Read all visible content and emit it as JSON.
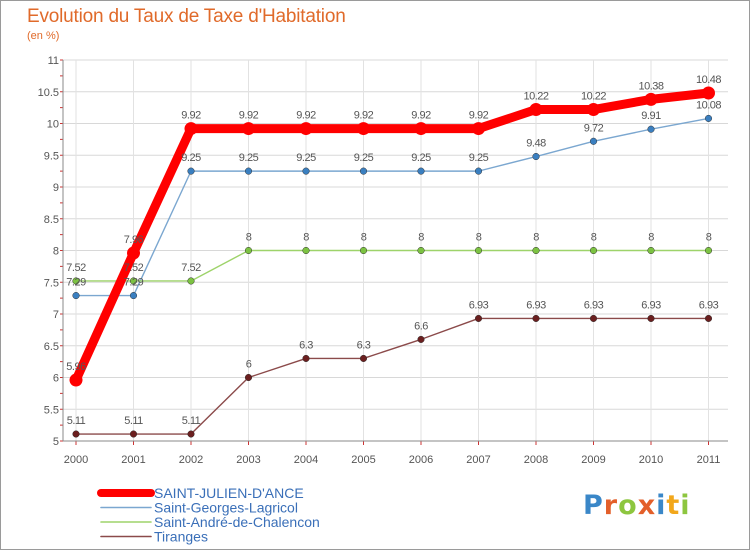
{
  "title": "Evolution du Taux de Taxe d'Habitation",
  "unit": "(en %)",
  "logo": {
    "text": "Proxiti",
    "letters": [
      "P",
      "r",
      "o",
      "x",
      "i",
      "t",
      "i"
    ],
    "colors": [
      "#3a87c8",
      "#e35f2a",
      "#8dc63f",
      "#e35f2a",
      "#3a87c8",
      "#f2a71b",
      "#8dc63f"
    ]
  },
  "chart_data": {
    "type": "line",
    "title": "Evolution du Taux de Taxe d'Habitation",
    "ylabel": "(en %)",
    "xlabel": "",
    "categories": [
      "2000",
      "2001",
      "2002",
      "2003",
      "2004",
      "2005",
      "2006",
      "2007",
      "2008",
      "2009",
      "2010",
      "2011"
    ],
    "ylim": [
      5,
      11
    ],
    "yticks": [
      "5",
      "5.5",
      "6",
      "6.5",
      "7",
      "7.5",
      "8",
      "8.5",
      "9",
      "9.5",
      "10",
      "10.5",
      "11"
    ],
    "legend_position": "bottom-left",
    "series": [
      {
        "name": "SAINT-JULIEN-D'ANCE",
        "color": "#ff0000",
        "marker": "#ff0000",
        "emphasis": true,
        "values": [
          5.96,
          7.96,
          9.92,
          9.92,
          9.92,
          9.92,
          9.92,
          9.92,
          10.22,
          10.22,
          10.38,
          10.48
        ],
        "labels": [
          "5.96",
          "7.96",
          "9.92",
          "9.92",
          "9.92",
          "9.92",
          "9.92",
          "9.92",
          "10.22",
          "10.22",
          "10.38",
          "10.48"
        ]
      },
      {
        "name": "Saint-Georges-Lagricol",
        "color": "#7ba7d0",
        "marker": "#3a7fc0",
        "emphasis": false,
        "values": [
          7.29,
          7.29,
          9.25,
          9.25,
          9.25,
          9.25,
          9.25,
          9.25,
          9.48,
          9.72,
          9.91,
          10.08
        ],
        "labels": [
          "7.29",
          "7.29",
          "9.25",
          "9.25",
          "9.25",
          "9.25",
          "9.25",
          "9.25",
          "9.48",
          "9.72",
          "9.91",
          "10.08"
        ]
      },
      {
        "name": "Saint-André-de-Chalencon",
        "color": "#9ed36a",
        "marker": "#7cc242",
        "emphasis": false,
        "values": [
          7.52,
          7.52,
          7.52,
          8,
          8,
          8,
          8,
          8,
          8,
          8,
          8,
          8
        ],
        "labels": [
          "7.52",
          "7.52",
          "7.52",
          "8",
          "8",
          "8",
          "8",
          "8",
          "8",
          "8",
          "8",
          "8"
        ]
      },
      {
        "name": "Tiranges",
        "color": "#8b4a4a",
        "marker": "#6b1f1f",
        "emphasis": false,
        "values": [
          5.11,
          5.11,
          5.11,
          6,
          6.3,
          6.3,
          6.6,
          6.93,
          6.93,
          6.93,
          6.93,
          6.93
        ],
        "labels": [
          "5.11",
          "5.11",
          "5.11",
          "6",
          "6.3",
          "6.3",
          "6.6",
          "6.93",
          "6.93",
          "6.93",
          "6.93",
          "6.93"
        ]
      }
    ]
  }
}
